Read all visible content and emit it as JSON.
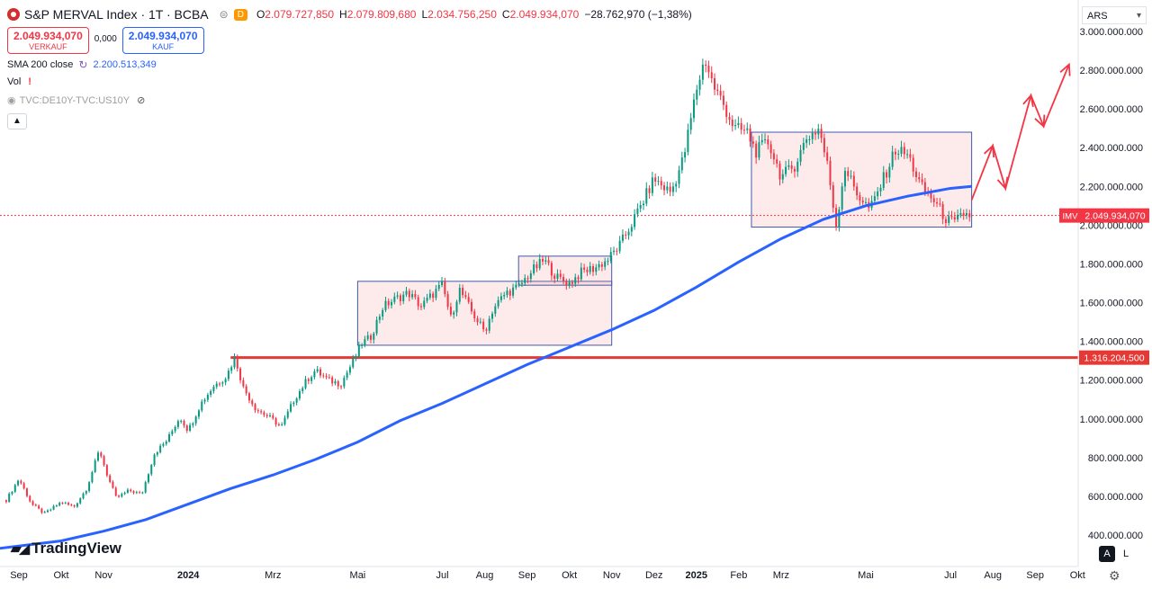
{
  "header": {
    "symbol": "S&P MERVAL Index · 1T · BCBA",
    "timeframe_badge": "D",
    "o_label": "O",
    "o_value": "2.079.727,850",
    "h_label": "H",
    "h_value": "2.079.809,680",
    "l_label": "L",
    "l_value": "2.034.756,250",
    "c_label": "C",
    "c_value": "2.049.934,070",
    "change": "−28.762,970 (−1,38%)"
  },
  "trade": {
    "sell_price": "2.049.934,070",
    "sell_label": "VERKAUF",
    "spread": "0,000",
    "buy_price": "2.049.934,070",
    "buy_label": "KAUF"
  },
  "indicators": {
    "sma_label": "SMA 200 close",
    "sma_value": "2.200.513,349",
    "vol_label": "Vol",
    "vol_warn": "!",
    "compare_label": "TVC:DE10Y-TVC:US10Y"
  },
  "currency": "ARS",
  "brand": "TradingView",
  "scale_buttons": {
    "a": "A",
    "l": "L"
  },
  "chart_data": {
    "type": "candlestick",
    "title": "S&P MERVAL Index",
    "y_axis": {
      "ticks": [
        400000000,
        600000000,
        800000000,
        1000000000,
        1200000000,
        1400000000,
        1600000000,
        1800000000,
        2000000000,
        2200000000,
        2400000000,
        2600000000,
        2800000000,
        3000000000
      ],
      "tick_labels": [
        "400.000.000",
        "600.000.000",
        "800.000.000",
        "1.000.000.000",
        "1.200.000.000",
        "1.400.000.000",
        "1.600.000.000",
        "1.800.000.000",
        "2.000.000.000",
        "2.200.000.000",
        "2.400.000.000",
        "2.600.000.000",
        "2.800.000.000",
        "3.000.000.000"
      ]
    },
    "x_axis": {
      "labels": [
        "Sep",
        "Okt",
        "Nov",
        "2024",
        "Mrz",
        "Mai",
        "Jul",
        "Aug",
        "Sep",
        "Okt",
        "Nov",
        "Dez",
        "2025",
        "Feb",
        "Mrz",
        "Mai",
        "Jul",
        "Aug",
        "Sep",
        "Okt"
      ],
      "label_x_units": [
        0,
        1,
        2,
        4,
        6,
        8,
        10,
        11,
        12,
        13,
        14,
        15,
        16,
        17,
        18,
        20,
        22,
        23,
        24,
        25
      ]
    },
    "last_price": 2049934070,
    "last_price_label": "2.049.934,070",
    "last_price_tag": "IMV",
    "support_level": 1316204500,
    "support_label": "1.316.204,500",
    "price_path": [
      [
        -0.3,
        580000000
      ],
      [
        0.0,
        690000000
      ],
      [
        0.3,
        560000000
      ],
      [
        0.6,
        510000000
      ],
      [
        1.0,
        570000000
      ],
      [
        1.3,
        545000000
      ],
      [
        1.6,
        640000000
      ],
      [
        1.9,
        840000000
      ],
      [
        2.1,
        700000000
      ],
      [
        2.3,
        590000000
      ],
      [
        2.6,
        630000000
      ],
      [
        2.9,
        610000000
      ],
      [
        3.2,
        820000000
      ],
      [
        3.5,
        890000000
      ],
      [
        3.8,
        1010000000
      ],
      [
        4.0,
        940000000
      ],
      [
        4.3,
        1080000000
      ],
      [
        4.6,
        1170000000
      ],
      [
        4.9,
        1220000000
      ],
      [
        5.1,
        1320000000
      ],
      [
        5.3,
        1160000000
      ],
      [
        5.6,
        1050000000
      ],
      [
        5.9,
        1010000000
      ],
      [
        6.2,
        960000000
      ],
      [
        6.5,
        1100000000
      ],
      [
        6.8,
        1200000000
      ],
      [
        7.0,
        1250000000
      ],
      [
        7.3,
        1200000000
      ],
      [
        7.6,
        1180000000
      ],
      [
        7.9,
        1300000000
      ],
      [
        8.1,
        1390000000
      ],
      [
        8.3,
        1420000000
      ],
      [
        8.6,
        1580000000
      ],
      [
        8.9,
        1620000000
      ],
      [
        9.2,
        1650000000
      ],
      [
        9.5,
        1580000000
      ],
      [
        9.8,
        1650000000
      ],
      [
        10.0,
        1690000000
      ],
      [
        10.2,
        1520000000
      ],
      [
        10.4,
        1670000000
      ],
      [
        10.7,
        1550000000
      ],
      [
        11.0,
        1450000000
      ],
      [
        11.2,
        1570000000
      ],
      [
        11.5,
        1650000000
      ],
      [
        11.8,
        1680000000
      ],
      [
        12.1,
        1760000000
      ],
      [
        12.4,
        1820000000
      ],
      [
        12.7,
        1730000000
      ],
      [
        13.0,
        1700000000
      ],
      [
        13.3,
        1760000000
      ],
      [
        13.6,
        1780000000
      ],
      [
        13.9,
        1820000000
      ],
      [
        14.2,
        1900000000
      ],
      [
        14.5,
        2020000000
      ],
      [
        14.8,
        2150000000
      ],
      [
        15.0,
        2240000000
      ],
      [
        15.2,
        2200000000
      ],
      [
        15.4,
        2170000000
      ],
      [
        15.7,
        2350000000
      ],
      [
        16.0,
        2700000000
      ],
      [
        16.2,
        2860000000
      ],
      [
        16.4,
        2720000000
      ],
      [
        16.6,
        2640000000
      ],
      [
        16.9,
        2500000000
      ],
      [
        17.2,
        2480000000
      ],
      [
        17.4,
        2380000000
      ],
      [
        17.7,
        2430000000
      ],
      [
        18.0,
        2250000000
      ],
      [
        18.3,
        2300000000
      ],
      [
        18.6,
        2450000000
      ],
      [
        18.9,
        2500000000
      ],
      [
        19.1,
        2300000000
      ],
      [
        19.3,
        2000000000
      ],
      [
        19.5,
        2300000000
      ],
      [
        19.8,
        2160000000
      ],
      [
        20.1,
        2080000000
      ],
      [
        20.4,
        2230000000
      ],
      [
        20.7,
        2390000000
      ],
      [
        21.0,
        2360000000
      ],
      [
        21.3,
        2200000000
      ],
      [
        21.6,
        2130000000
      ],
      [
        21.9,
        2030000000
      ],
      [
        22.1,
        2010000000
      ],
      [
        22.3,
        2060000000
      ],
      [
        22.5,
        2049934070
      ]
    ],
    "sma_200": [
      [
        -0.5,
        330000000
      ],
      [
        1,
        370000000
      ],
      [
        2,
        420000000
      ],
      [
        3,
        480000000
      ],
      [
        4,
        560000000
      ],
      [
        5,
        640000000
      ],
      [
        6,
        710000000
      ],
      [
        7,
        790000000
      ],
      [
        8,
        880000000
      ],
      [
        9,
        990000000
      ],
      [
        10,
        1080000000
      ],
      [
        11,
        1180000000
      ],
      [
        12,
        1280000000
      ],
      [
        13,
        1370000000
      ],
      [
        14,
        1460000000
      ],
      [
        15,
        1560000000
      ],
      [
        16,
        1680000000
      ],
      [
        17,
        1810000000
      ],
      [
        18,
        1930000000
      ],
      [
        19,
        2030000000
      ],
      [
        20,
        2100000000
      ],
      [
        21,
        2150000000
      ],
      [
        22,
        2190000000
      ],
      [
        22.5,
        2200513349
      ]
    ],
    "boxes": [
      {
        "x_start": 8.0,
        "x_end": 14.0,
        "y_low": 1380000000,
        "y_high": 1710000000
      },
      {
        "x_start": 11.8,
        "x_end": 14.0,
        "y_low": 1690000000,
        "y_high": 1840000000
      },
      {
        "x_start": 17.3,
        "x_end": 22.5,
        "y_low": 1990000000,
        "y_high": 2480000000
      }
    ],
    "projection": [
      [
        22.5,
        2130000000
      ],
      [
        23.0,
        2410000000
      ],
      [
        23.3,
        2190000000
      ],
      [
        23.9,
        2670000000
      ],
      [
        24.2,
        2510000000
      ],
      [
        24.8,
        2830000000
      ]
    ],
    "grid": false,
    "legend": "top-left"
  }
}
